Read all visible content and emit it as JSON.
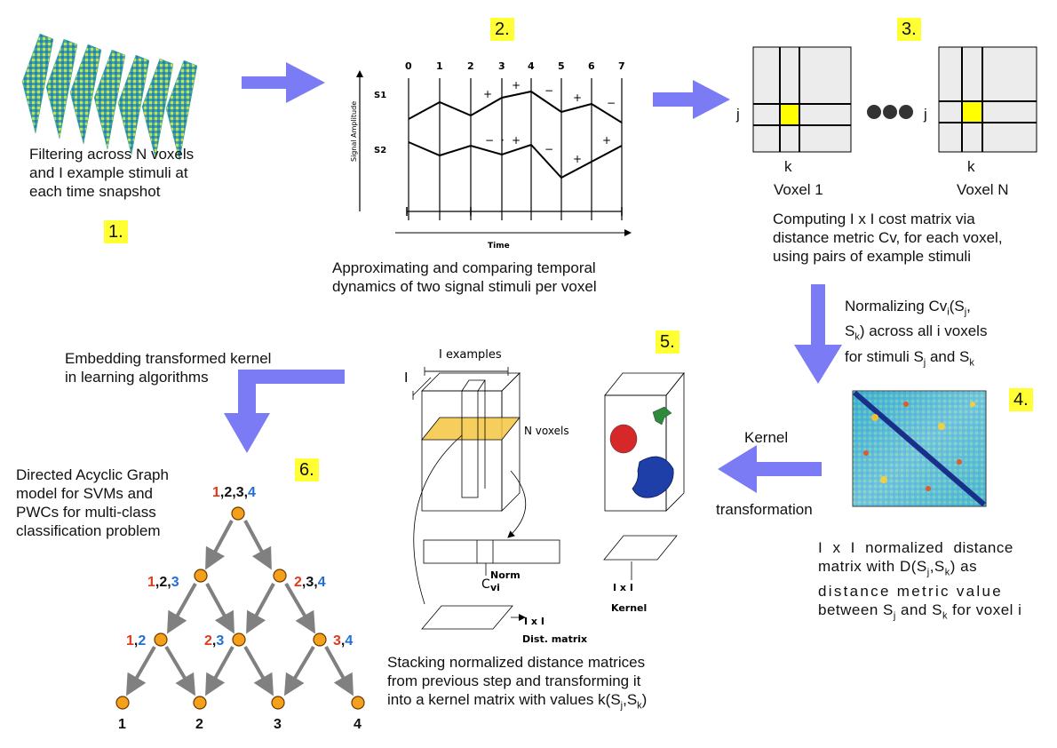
{
  "steps": {
    "s1": {
      "badge": "1.",
      "caption": [
        "Filtering across N voxels",
        "and I example stimuli at",
        "each time snapshot"
      ]
    },
    "s2": {
      "badge": "2.",
      "caption": [
        "Approximating and comparing temporal",
        "dynamics of two signal stimuli per voxel"
      ],
      "ticks": [
        "0",
        "1",
        "2",
        "3",
        "4",
        "5",
        "6",
        "7"
      ],
      "signal1": "S1",
      "signal2": "S2",
      "ylabel": "Signal Amplitude",
      "xlabel": "Time",
      "signs1": [
        "+",
        "+",
        "−",
        "+",
        "−"
      ],
      "signs2": [
        "−",
        "·",
        "+",
        "−",
        "+",
        "+"
      ]
    },
    "s3": {
      "badge": "3.",
      "caption": [
        "Computing I x I cost matrix via",
        "distance metric Cv, for each voxel,",
        "using pairs of example stimuli"
      ],
      "row_label": "j",
      "col_label": "k",
      "voxel1": "Voxel 1",
      "voxelN": "Voxel N"
    },
    "s3to4": {
      "line1": "Normalizing Cv",
      "sub_i": "i",
      "line1b": "(S",
      "sub_j": "j",
      "line1c": ",",
      "line2a": "S",
      "sub_k": "k",
      "line2b": ") across all i voxels",
      "line3a": "for stimuli S",
      "line3b": " and S"
    },
    "s4": {
      "badge": "4.",
      "caption": [
        "I x I normalized distance",
        "matrix with D(S",
        "distance metric value",
        "between S"
      ],
      "matrix_text": {
        "l2a": "matrix with D(S",
        "l2b": ",S",
        "l2c": ") as",
        "l4a": "between S",
        "l4b": " and S",
        "l4c": " for voxel i"
      }
    },
    "s4to5": {
      "kernel": "Kernel",
      "transformation": "transformation"
    },
    "s5": {
      "badge": "5.",
      "i_examples": "I examples",
      "i_label": "I",
      "n_voxels": "N voxels",
      "norm_c": "C",
      "norm_sub": "vi",
      "norm_sup": "Norm",
      "dist_label1": "I x I",
      "dist_label2": "Dist. matrix",
      "kernel_label1": "I x I",
      "kernel_label2": "Kernel",
      "caption": [
        "Stacking normalized distance matrices",
        "from previous step and transforming it",
        "into a kernel matrix with values k(S"
      ]
    },
    "s6": {
      "badge": "6.",
      "embed": [
        "Embedding transformed  kernel",
        "in learning algorithms"
      ],
      "caption": [
        "Directed Acyclic Graph",
        "model for SVMs and",
        "PWCs for multi-class",
        "classification problem"
      ],
      "nodes": {
        "root": [
          "1",
          ",2,3,",
          "4"
        ],
        "l2a": [
          "1",
          ",2,",
          "3"
        ],
        "l2b": [
          "2",
          ",3,",
          "4"
        ],
        "l3a": [
          "1",
          ",",
          "2"
        ],
        "l3b": [
          "2",
          ",",
          "3"
        ],
        "l3c": [
          "3",
          ",",
          "4"
        ],
        "leaves": [
          "1",
          "2",
          "3",
          "4"
        ]
      }
    }
  },
  "colors": {
    "arrow": "#7b7bf5",
    "highlight": "#ffff33",
    "node": "#f5a01a",
    "red": "#e03a1a",
    "blue": "#1f6fd6",
    "slice": "#f5c542"
  }
}
